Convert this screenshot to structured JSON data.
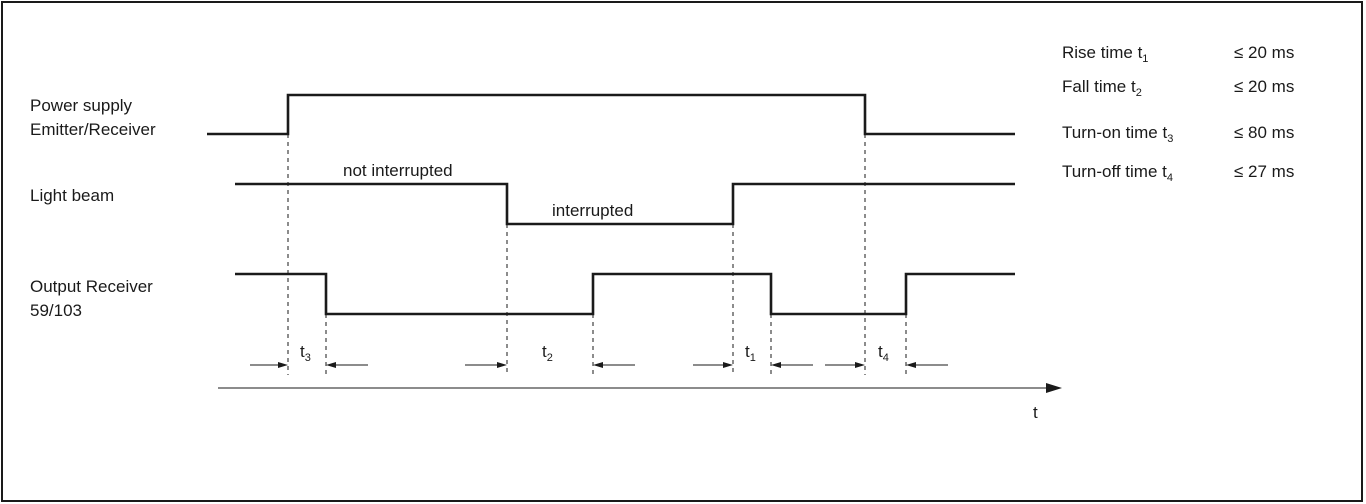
{
  "signals": [
    {
      "label_lines": [
        "Power supply",
        "Emitter/Receiver"
      ]
    },
    {
      "label_lines": [
        "Light beam"
      ]
    },
    {
      "label_lines": [
        "Output Receiver",
        "59/103"
      ]
    }
  ],
  "beam_states": {
    "high": "not interrupted",
    "low": "interrupted"
  },
  "interval_markers": [
    {
      "base": "t",
      "sub": "3"
    },
    {
      "base": "t",
      "sub": "2"
    },
    {
      "base": "t",
      "sub": "1"
    },
    {
      "base": "t",
      "sub": "4"
    }
  ],
  "axis_label": "t",
  "specs": [
    {
      "name": "Rise time t",
      "sub": "1",
      "value": "≤ 20 ms"
    },
    {
      "name": "Fall time t",
      "sub": "2",
      "value": "≤ 20 ms"
    },
    {
      "name": "Turn-on time t",
      "sub": "3",
      "value": "≤ 80 ms"
    },
    {
      "name": "Turn-off time t",
      "sub": "4",
      "value": "≤ 27 ms"
    }
  ]
}
